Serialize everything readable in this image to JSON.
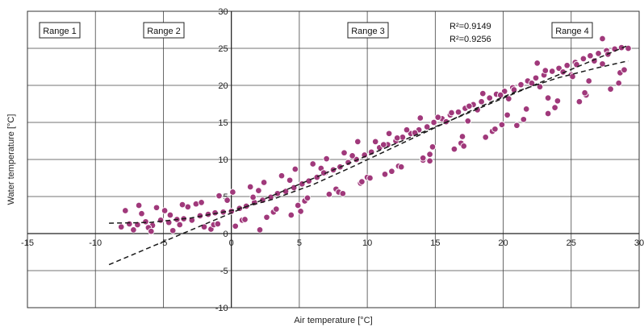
{
  "chart_data": {
    "type": "scatter",
    "title": "",
    "xlabel": "Air temperature [°C]",
    "ylabel": "Water temperature [°C]",
    "xlim": [
      -15,
      30
    ],
    "ylim": [
      -10,
      30
    ],
    "xticks": [
      -15,
      -10,
      -5,
      0,
      5,
      10,
      15,
      20,
      25,
      30
    ],
    "yticks": [
      -10,
      -5,
      0,
      5,
      10,
      15,
      20,
      25,
      30
    ],
    "grid": true,
    "point_color": "#a0397b",
    "ranges": [
      "Range 1",
      "Range 2",
      "Range 3",
      "Range 4"
    ],
    "r2_labels": [
      "R²=0.9149",
      "R²=0.9256"
    ],
    "series": [
      {
        "type": "scatter",
        "x": [
          -8.1,
          -7.5,
          -6.9,
          -6.3,
          -5.8,
          -5.2,
          -4.6,
          -4.0,
          -3.5,
          -2.9,
          -2.3,
          -1.7,
          -1.2,
          -0.6,
          0.0,
          0.6,
          1.1,
          1.7,
          2.3,
          2.9,
          3.4,
          4.0,
          4.6,
          5.2,
          5.7,
          6.3,
          6.9,
          7.5,
          8.0,
          8.6,
          9.2,
          9.8,
          10.3,
          10.9,
          11.5,
          12.1,
          12.6,
          13.2,
          13.8,
          14.4,
          14.9,
          15.5,
          16.1,
          16.7,
          17.2,
          17.8,
          18.4,
          19.0,
          19.5,
          20.1,
          20.7,
          21.3,
          21.8,
          22.4,
          23.0,
          23.6,
          24.1,
          24.7,
          25.3,
          25.9,
          26.4,
          27.0,
          27.6,
          28.2,
          28.7,
          29.2,
          -7.8,
          -6.6,
          -5.5,
          -4.3,
          -3.2,
          -2.0,
          -0.9,
          0.3,
          1.4,
          2.6,
          3.7,
          4.9,
          6.0,
          7.2,
          8.3,
          9.5,
          10.6,
          11.8,
          12.9,
          14.1,
          15.2,
          16.4,
          17.5,
          18.7,
          19.8,
          21.0,
          22.1,
          23.3,
          24.4,
          25.6,
          26.7,
          27.9,
          -7.2,
          -6.1,
          -4.9,
          -3.8,
          -2.6,
          -1.5,
          -0.3,
          0.8,
          2.0,
          3.1,
          4.3,
          5.4,
          6.6,
          7.7,
          8.9,
          10.0,
          11.2,
          12.3,
          13.5,
          14.6,
          15.8,
          16.9,
          18.1,
          19.2,
          20.4,
          21.5,
          22.7,
          23.8,
          25.0,
          26.1,
          27.3,
          28.5,
          -6.8,
          -4.5,
          -2.2,
          0.1,
          2.4,
          4.7,
          7.0,
          9.3,
          11.6,
          13.9,
          16.2,
          18.5,
          20.8,
          23.1,
          25.4,
          27.7,
          -5.9,
          -3.6,
          -1.3,
          1.0,
          3.3,
          5.6,
          7.9,
          10.2,
          12.5,
          14.8,
          17.1,
          19.4,
          21.7,
          24.0,
          26.3,
          28.6,
          -1.0,
          1.6,
          4.4,
          6.8,
          9.6,
          12.2,
          14.6,
          17.4,
          19.9,
          22.5,
          25.1,
          27.3,
          2.1,
          5.1,
          8.2,
          11.3,
          14.1,
          17.0,
          20.3,
          23.3,
          26.0,
          28.9
        ],
        "y": [
          0.9,
          1.3,
          1.2,
          1.6,
          1.1,
          1.8,
          1.5,
          1.9,
          2.0,
          1.8,
          2.4,
          2.6,
          2.8,
          2.9,
          3.0,
          3.4,
          3.7,
          4.2,
          4.5,
          4.9,
          5.4,
          5.7,
          6.2,
          6.7,
          7.1,
          7.6,
          8.2,
          8.6,
          9.0,
          9.6,
          10.0,
          10.6,
          11.0,
          11.6,
          12.0,
          12.5,
          13.0,
          13.5,
          14.0,
          14.4,
          15.0,
          15.5,
          16.0,
          16.4,
          16.9,
          17.4,
          17.8,
          18.3,
          18.8,
          19.2,
          19.7,
          20.1,
          20.6,
          21.0,
          21.4,
          21.9,
          22.3,
          22.7,
          23.1,
          23.6,
          24.0,
          24.3,
          24.7,
          24.9,
          25.1,
          25.0,
          3.1,
          2.7,
          3.5,
          0.4,
          3.6,
          0.9,
          5.1,
          1.0,
          6.3,
          2.2,
          7.8,
          3.8,
          9.4,
          5.3,
          10.9,
          6.8,
          12.4,
          8.4,
          14.0,
          9.9,
          15.7,
          11.4,
          17.2,
          13.0,
          18.7,
          14.6,
          20.3,
          16.2,
          21.8,
          17.8,
          23.3,
          19.5,
          0.5,
          0.8,
          3.1,
          1.2,
          4.0,
          0.6,
          4.5,
          1.8,
          5.8,
          2.9,
          7.2,
          4.4,
          8.8,
          6.0,
          10.5,
          7.6,
          12.0,
          9.1,
          13.6,
          10.7,
          15.1,
          12.2,
          16.7,
          13.8,
          18.2,
          15.4,
          19.8,
          17.0,
          21.4,
          18.7,
          22.9,
          20.3,
          3.8,
          2.5,
          4.2,
          5.6,
          6.9,
          8.7,
          10.1,
          12.4,
          13.5,
          15.6,
          16.3,
          18.9,
          19.4,
          22.0,
          22.8,
          24.2,
          0.3,
          3.9,
          1.2,
          1.9,
          3.3,
          4.8,
          5.6,
          7.5,
          9.0,
          11.7,
          11.8,
          14.1,
          16.8,
          17.9,
          20.6,
          21.7,
          1.3,
          4.9,
          2.5,
          8.2,
          7.0,
          12.9,
          9.8,
          15.2,
          14.7,
          23.0,
          21.2,
          26.3,
          0.5,
          3.0,
          5.4,
          8.0,
          10.2,
          13.1,
          16.0,
          18.3,
          19.0,
          22.1
        ]
      },
      {
        "type": "fit",
        "name": "",
        "x": [
          -9,
          29.2
        ],
        "y": [
          -4.2,
          25.4
        ]
      },
      {
        "type": "fit",
        "name": "",
        "x": [
          -9,
          -6,
          -3,
          0,
          3,
          6,
          9,
          12,
          15,
          18,
          21,
          24,
          27,
          29.2
        ],
        "y": [
          1.4,
          1.5,
          2.1,
          3.1,
          4.6,
          6.6,
          9.1,
          11.7,
          14.3,
          16.9,
          19.2,
          21.0,
          22.4,
          23.3
        ]
      }
    ]
  }
}
